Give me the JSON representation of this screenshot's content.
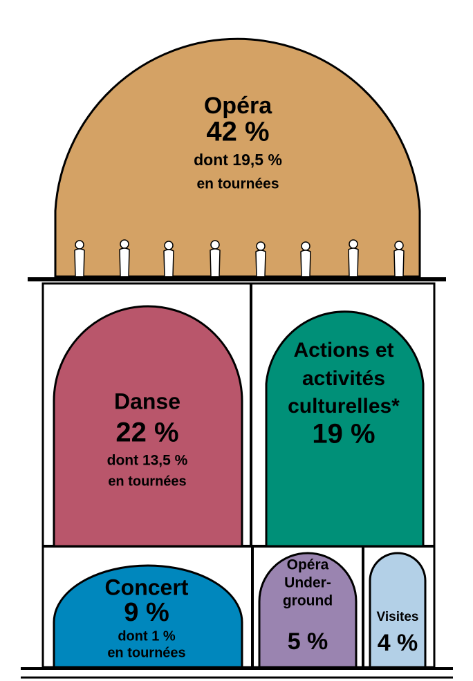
{
  "sections": [
    {
      "label": [
        "Opéra"
      ],
      "share": "42 %",
      "detail": [
        "dont 19,5 %",
        "en tournées"
      ]
    },
    {
      "label": [
        "Danse"
      ],
      "share": "22 %",
      "detail": [
        "dont 13,5 %",
        "en tournées"
      ]
    },
    {
      "label": [
        "Actions et",
        "activités",
        "culturelles*"
      ],
      "share": "19 %"
    },
    {
      "label": [
        "Concert"
      ],
      "share": "9 %",
      "detail": [
        "dont 1 %",
        "en tournées"
      ]
    },
    {
      "label": [
        "Opéra",
        "Under-",
        "ground"
      ],
      "share": "5 %"
    },
    {
      "label": [
        "Visites"
      ],
      "share": "4 %"
    }
  ]
}
